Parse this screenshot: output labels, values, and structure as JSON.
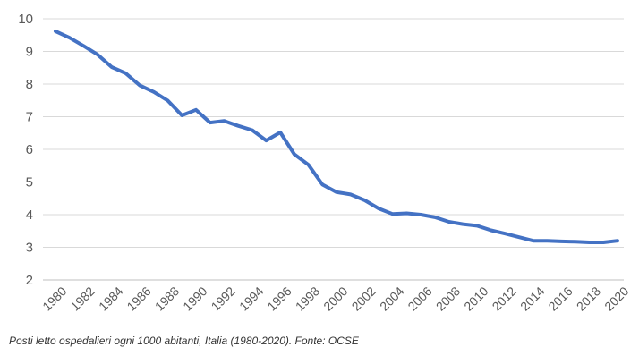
{
  "chart_data": {
    "type": "line",
    "x": [
      1980,
      1981,
      1982,
      1983,
      1984,
      1985,
      1986,
      1987,
      1988,
      1989,
      1990,
      1991,
      1992,
      1993,
      1994,
      1995,
      1996,
      1997,
      1998,
      1999,
      2000,
      2001,
      2002,
      2003,
      2004,
      2005,
      2006,
      2007,
      2008,
      2009,
      2010,
      2011,
      2012,
      2013,
      2014,
      2015,
      2016,
      2017,
      2018,
      2019,
      2020
    ],
    "series": [
      {
        "values": [
          9.62,
          9.42,
          9.17,
          8.9,
          8.52,
          8.33,
          7.96,
          7.76,
          7.49,
          7.04,
          7.21,
          6.82,
          6.87,
          6.72,
          6.59,
          6.27,
          6.52,
          5.85,
          5.53,
          4.92,
          4.69,
          4.62,
          4.44,
          4.19,
          4.02,
          4.04,
          4.0,
          3.92,
          3.78,
          3.71,
          3.66,
          3.52,
          3.42,
          3.31,
          3.2,
          3.2,
          3.18,
          3.17,
          3.15,
          3.15,
          3.2
        ],
        "color": "#4472C4"
      }
    ],
    "xticks": [
      "1980",
      "1982",
      "1984",
      "1986",
      "1988",
      "1990",
      "1992",
      "1994",
      "1996",
      "1998",
      "2000",
      "2002",
      "2004",
      "2006",
      "2008",
      "2010",
      "2012",
      "2014",
      "2016",
      "2018",
      "2020"
    ],
    "yticks": [
      "2",
      "3",
      "4",
      "5",
      "6",
      "7",
      "8",
      "9",
      "10"
    ],
    "ylim": [
      2,
      10
    ],
    "xlim": [
      1980,
      2020
    ],
    "grid": true,
    "legend": "none"
  },
  "caption": "Posti letto ospedalieri ogni 1000 abitanti, Italia (1980-2020). Fonte: OCSE"
}
